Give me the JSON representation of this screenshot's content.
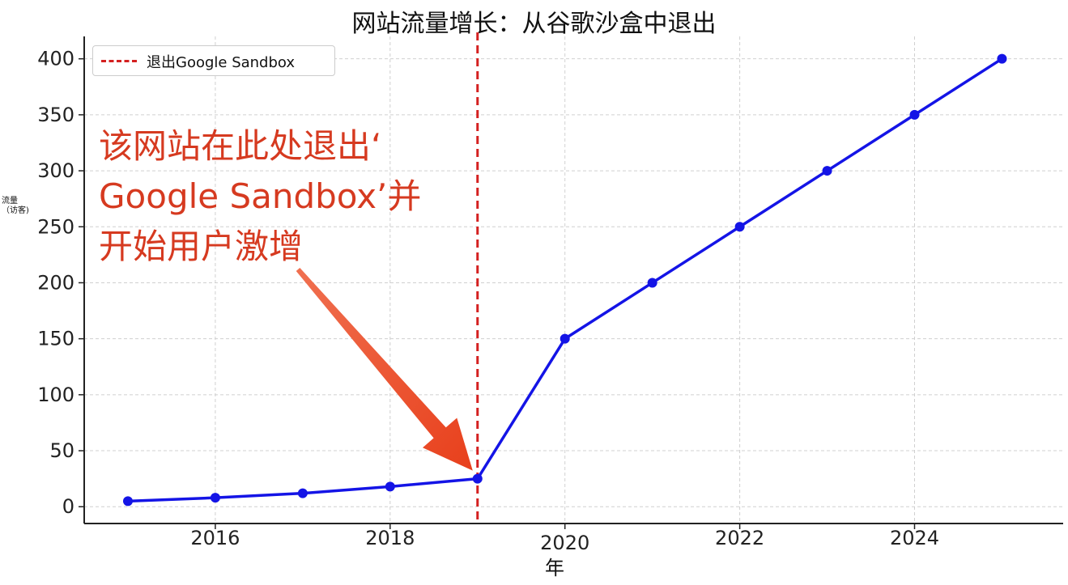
{
  "chart_data": {
    "type": "line",
    "title": "网站流量增长：从谷歌沙盒中退出",
    "xlabel": "年",
    "ylabel": "流量（访客)",
    "x": [
      2015,
      2016,
      2017,
      2018,
      2019,
      2020,
      2021,
      2022,
      2023,
      2024,
      2025
    ],
    "series": [
      {
        "values": [
          5,
          8,
          12,
          18,
          25,
          150,
          200,
          250,
          300,
          350,
          400
        ],
        "color": "#1414e6"
      }
    ],
    "xlim": [
      2014.5,
      2025.7
    ],
    "ylim": [
      -15,
      420
    ],
    "xticks": [
      2016,
      2018,
      2020,
      2022,
      2024
    ],
    "yticks": [
      0,
      50,
      100,
      150,
      200,
      250,
      300,
      350,
      400
    ],
    "xtick_labels": [
      "2016",
      "2018",
      "2020",
      "2022",
      "2024"
    ],
    "ytick_labels": [
      "0",
      "50",
      "100",
      "150",
      "200",
      "250",
      "300",
      "350",
      "400"
    ],
    "grid": true,
    "legend": {
      "placement": "top-left",
      "entries": [
        "退出Google Sandbox"
      ]
    },
    "vline": {
      "x": 2019,
      "color": "#d42020",
      "label": "退出Google Sandbox"
    },
    "annotation": {
      "lines": [
        "该网站在此处退出‘",
        "Google Sandbox’并",
        "开始用户激增"
      ],
      "color": "#d63a20",
      "points_to": {
        "x": 2019,
        "y": 25
      }
    }
  }
}
